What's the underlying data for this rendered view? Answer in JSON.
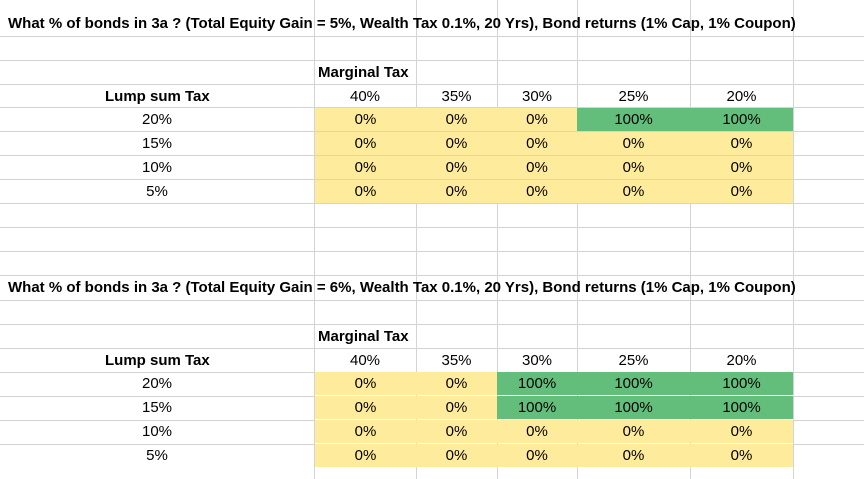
{
  "tables": [
    {
      "title": "What % of bonds in 3a ?  (Total Equity Gain = 5%, Wealth Tax 0.1%, 20 Yrs), Bond returns (1% Cap, 1% Coupon)",
      "col_header_title": "Marginal Tax",
      "row_header_title": "Lump sum Tax",
      "columns": [
        "40%",
        "35%",
        "30%",
        "25%",
        "20%"
      ],
      "rows": [
        {
          "label": "20%",
          "cells": [
            "0%",
            "0%",
            "0%",
            "100%",
            "100%"
          ]
        },
        {
          "label": "15%",
          "cells": [
            "0%",
            "0%",
            "0%",
            "0%",
            "0%"
          ]
        },
        {
          "label": "10%",
          "cells": [
            "0%",
            "0%",
            "0%",
            "0%",
            "0%"
          ]
        },
        {
          "label": "5%",
          "cells": [
            "0%",
            "0%",
            "0%",
            "0%",
            "0%"
          ]
        }
      ]
    },
    {
      "title": "What % of bonds in 3a ?  (Total Equity Gain = 6%, Wealth Tax 0.1%, 20 Yrs), Bond returns (1% Cap, 1% Coupon)",
      "col_header_title": "Marginal Tax",
      "row_header_title": "Lump sum Tax",
      "columns": [
        "40%",
        "35%",
        "30%",
        "25%",
        "20%"
      ],
      "rows": [
        {
          "label": "20%",
          "cells": [
            "0%",
            "0%",
            "100%",
            "100%",
            "100%"
          ]
        },
        {
          "label": "15%",
          "cells": [
            "0%",
            "0%",
            "100%",
            "100%",
            "100%"
          ]
        },
        {
          "label": "10%",
          "cells": [
            "0%",
            "0%",
            "0%",
            "0%",
            "0%"
          ]
        },
        {
          "label": "5%",
          "cells": [
            "0%",
            "0%",
            "0%",
            "0%",
            "0%"
          ]
        }
      ]
    }
  ],
  "colors": {
    "yellow": "#ffeb9c",
    "green": "#63be7b",
    "gridline": "#d4d4d4"
  }
}
